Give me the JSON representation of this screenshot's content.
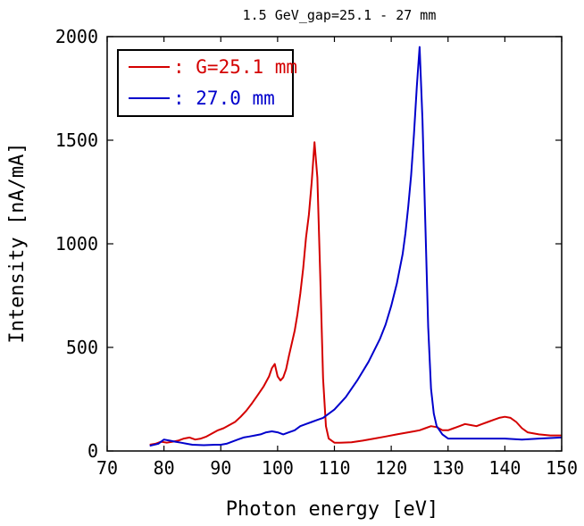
{
  "chart_data": {
    "type": "line",
    "title": "1.5 GeV_gap=25.1 - 27 mm",
    "xlabel": "Photon energy [eV]",
    "ylabel": "Intensity [nA/mA]",
    "xlim": [
      70,
      150
    ],
    "ylim": [
      0,
      2000
    ],
    "xticks": [
      70,
      80,
      90,
      100,
      110,
      120,
      130,
      140,
      150
    ],
    "yticks": [
      0,
      500,
      1000,
      1500,
      2000
    ],
    "grid": false,
    "legend_position": "top-left",
    "series": [
      {
        "name": ": G=25.1 mm",
        "color": "#d40000",
        "x": [
          77.5,
          78.5,
          79.5,
          80.5,
          81.5,
          82.5,
          83.5,
          84.5,
          85.5,
          86.5,
          87.5,
          88.5,
          89.5,
          90.5,
          91.5,
          92.5,
          93.5,
          94.5,
          95.5,
          96.5,
          97.5,
          98.5,
          99.0,
          99.5,
          100.0,
          100.5,
          101.0,
          101.5,
          102.0,
          102.5,
          103.0,
          103.5,
          104.0,
          104.5,
          105.0,
          105.5,
          106.0,
          106.5,
          107.0,
          107.5,
          108.0,
          108.5,
          109.0,
          110.0,
          111.0,
          113.0,
          115.0,
          117.0,
          119.0,
          121.0,
          123.0,
          124.0,
          125.0,
          126.0,
          127.0,
          128.0,
          129.0,
          130.0,
          131.0,
          132.0,
          133.0,
          134.0,
          135.0,
          136.0,
          137.0,
          138.0,
          139.0,
          140.0,
          141.0,
          142.0,
          143.0,
          144.0,
          146.0,
          148.0,
          150.0
        ],
        "values": [
          30,
          35,
          45,
          40,
          45,
          50,
          60,
          65,
          55,
          60,
          70,
          85,
          100,
          110,
          125,
          140,
          165,
          195,
          230,
          270,
          310,
          360,
          400,
          420,
          360,
          340,
          355,
          395,
          460,
          520,
          580,
          660,
          760,
          880,
          1030,
          1140,
          1300,
          1490,
          1320,
          850,
          350,
          120,
          60,
          40,
          40,
          42,
          50,
          60,
          70,
          80,
          90,
          95,
          100,
          110,
          120,
          115,
          100,
          100,
          110,
          120,
          130,
          125,
          120,
          130,
          140,
          150,
          160,
          165,
          160,
          140,
          110,
          90,
          80,
          75,
          75
        ]
      },
      {
        "name": ": 27.0 mm",
        "color": "#0000cc",
        "x": [
          77.5,
          79.0,
          80.0,
          81.0,
          82.0,
          83.0,
          84.0,
          85.0,
          87.0,
          89.0,
          90.0,
          91.0,
          92.0,
          93.0,
          94.0,
          95.0,
          96.0,
          97.0,
          98.0,
          99.0,
          100.0,
          101.0,
          102.0,
          103.0,
          104.0,
          105.0,
          106.0,
          107.0,
          108.0,
          110.0,
          112.0,
          114.0,
          116.0,
          118.0,
          119.0,
          120.0,
          121.0,
          122.0,
          122.5,
          123.0,
          123.5,
          124.0,
          124.5,
          125.0,
          125.5,
          126.0,
          126.5,
          127.0,
          127.5,
          128.0,
          129.0,
          130.0,
          132.0,
          135.0,
          140.0,
          143.0,
          146.0,
          150.0
        ],
        "values": [
          25,
          35,
          55,
          50,
          45,
          40,
          35,
          30,
          28,
          30,
          30,
          35,
          45,
          55,
          65,
          70,
          75,
          80,
          90,
          95,
          90,
          80,
          90,
          100,
          120,
          130,
          140,
          150,
          160,
          200,
          260,
          340,
          430,
          540,
          610,
          700,
          810,
          950,
          1050,
          1180,
          1330,
          1530,
          1760,
          1950,
          1600,
          1100,
          600,
          300,
          180,
          120,
          80,
          60,
          60,
          60,
          60,
          55,
          60,
          65
        ]
      }
    ]
  }
}
